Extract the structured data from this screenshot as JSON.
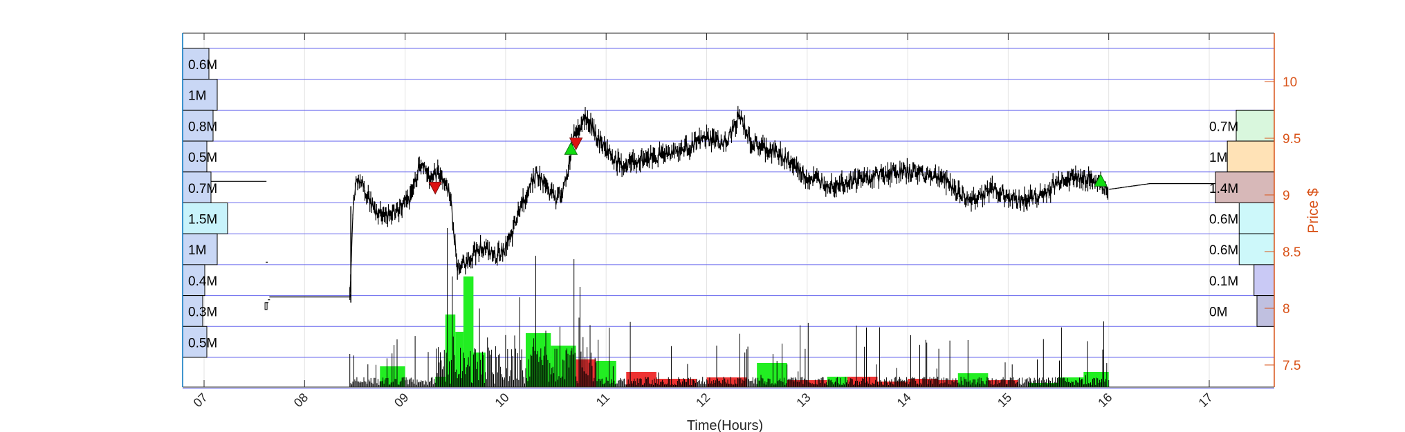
{
  "chart_data": {
    "type": "candlestick_volume_profile",
    "xlabel": "Time(Hours)",
    "ylabel": "Price $",
    "x_ticks": [
      "07",
      "08",
      "09",
      "10",
      "11",
      "12",
      "13",
      "14",
      "15",
      "16",
      "17"
    ],
    "x_range_hours": [
      6.78,
      17.6
    ],
    "y_ticks": [
      "7.5",
      "8",
      "8.5",
      "9",
      "9.5",
      "10"
    ],
    "ylim": [
      7.3,
      10.4
    ],
    "grid": true,
    "price_path": [
      [
        6.8,
        9.12
      ],
      [
        7.6,
        9.12
      ],
      [
        7.62,
        8.05
      ],
      [
        7.65,
        8.1
      ],
      [
        8.45,
        8.1
      ],
      [
        8.48,
        8.85
      ],
      [
        8.52,
        9.15
      ],
      [
        8.6,
        9.05
      ],
      [
        8.7,
        8.85
      ],
      [
        8.85,
        8.82
      ],
      [
        9.05,
        8.95
      ],
      [
        9.15,
        9.3
      ],
      [
        9.25,
        9.15
      ],
      [
        9.35,
        9.2
      ],
      [
        9.45,
        9.0
      ],
      [
        9.52,
        8.35
      ],
      [
        9.6,
        8.4
      ],
      [
        9.75,
        8.55
      ],
      [
        9.9,
        8.45
      ],
      [
        10.05,
        8.6
      ],
      [
        10.15,
        8.9
      ],
      [
        10.3,
        9.2
      ],
      [
        10.5,
        8.95
      ],
      [
        10.6,
        9.1
      ],
      [
        10.68,
        9.55
      ],
      [
        10.8,
        9.7
      ],
      [
        10.95,
        9.45
      ],
      [
        11.15,
        9.25
      ],
      [
        11.3,
        9.3
      ],
      [
        11.5,
        9.35
      ],
      [
        11.75,
        9.4
      ],
      [
        12.0,
        9.5
      ],
      [
        12.2,
        9.45
      ],
      [
        12.32,
        9.7
      ],
      [
        12.45,
        9.45
      ],
      [
        12.75,
        9.35
      ],
      [
        13.0,
        9.15
      ],
      [
        13.25,
        9.1
      ],
      [
        13.6,
        9.15
      ],
      [
        13.85,
        9.2
      ],
      [
        14.1,
        9.2
      ],
      [
        14.35,
        9.15
      ],
      [
        14.6,
        8.95
      ],
      [
        14.85,
        9.05
      ],
      [
        15.1,
        8.95
      ],
      [
        15.35,
        9.0
      ],
      [
        15.55,
        9.15
      ],
      [
        15.8,
        9.15
      ],
      [
        16.0,
        9.05
      ],
      [
        16.4,
        9.1
      ],
      [
        16.9,
        9.1
      ],
      [
        17.3,
        9.1
      ]
    ],
    "buy_signals": [
      [
        10.65,
        9.4
      ],
      [
        15.92,
        9.12
      ]
    ],
    "sell_signals": [
      [
        9.3,
        9.07
      ],
      [
        10.7,
        9.46
      ]
    ],
    "volume_profile_left": [
      "0.6M",
      "1M",
      "0.8M",
      "0.5M",
      "0.7M",
      "1.5M",
      "1M",
      "0.4M",
      "0.3M",
      "0.5M"
    ],
    "volume_profile_left_values": [
      0.6,
      1.0,
      0.8,
      0.5,
      0.7,
      1.5,
      1.0,
      0.4,
      0.3,
      0.5
    ],
    "volume_profile_right": [
      "0.7M",
      "1M",
      "1.4M",
      "0.6M",
      "0.6M",
      "0.1M",
      "0M"
    ],
    "volume_profile_right_values": [
      0.7,
      1.0,
      1.4,
      0.6,
      0.6,
      0.1,
      0.0
    ],
    "volume_profile_right_colors": [
      "#d9f7dd",
      "#ffe2b6",
      "#d7b8b8",
      "#cdf8fa",
      "#cdf8fa",
      "#c9c9f5",
      "#c0c0e0"
    ],
    "volume_profile_left_colors": [
      "#c9d7f5",
      "#c9d7f5",
      "#c9d7f5",
      "#c9d7f5",
      "#c9d7f5",
      "#c8f3fb",
      "#c9d7f5",
      "#c9d7f5",
      "#c9d7f5",
      "#c9d7f5"
    ],
    "colors": {
      "axis_right": "#D95319",
      "grid_h": "#6666ee",
      "grid_v": "#e3e3e3",
      "up_volume": "#22ee22",
      "down_volume": "#ee3333",
      "price": "#000000",
      "axis_left": "#0072BD"
    }
  }
}
